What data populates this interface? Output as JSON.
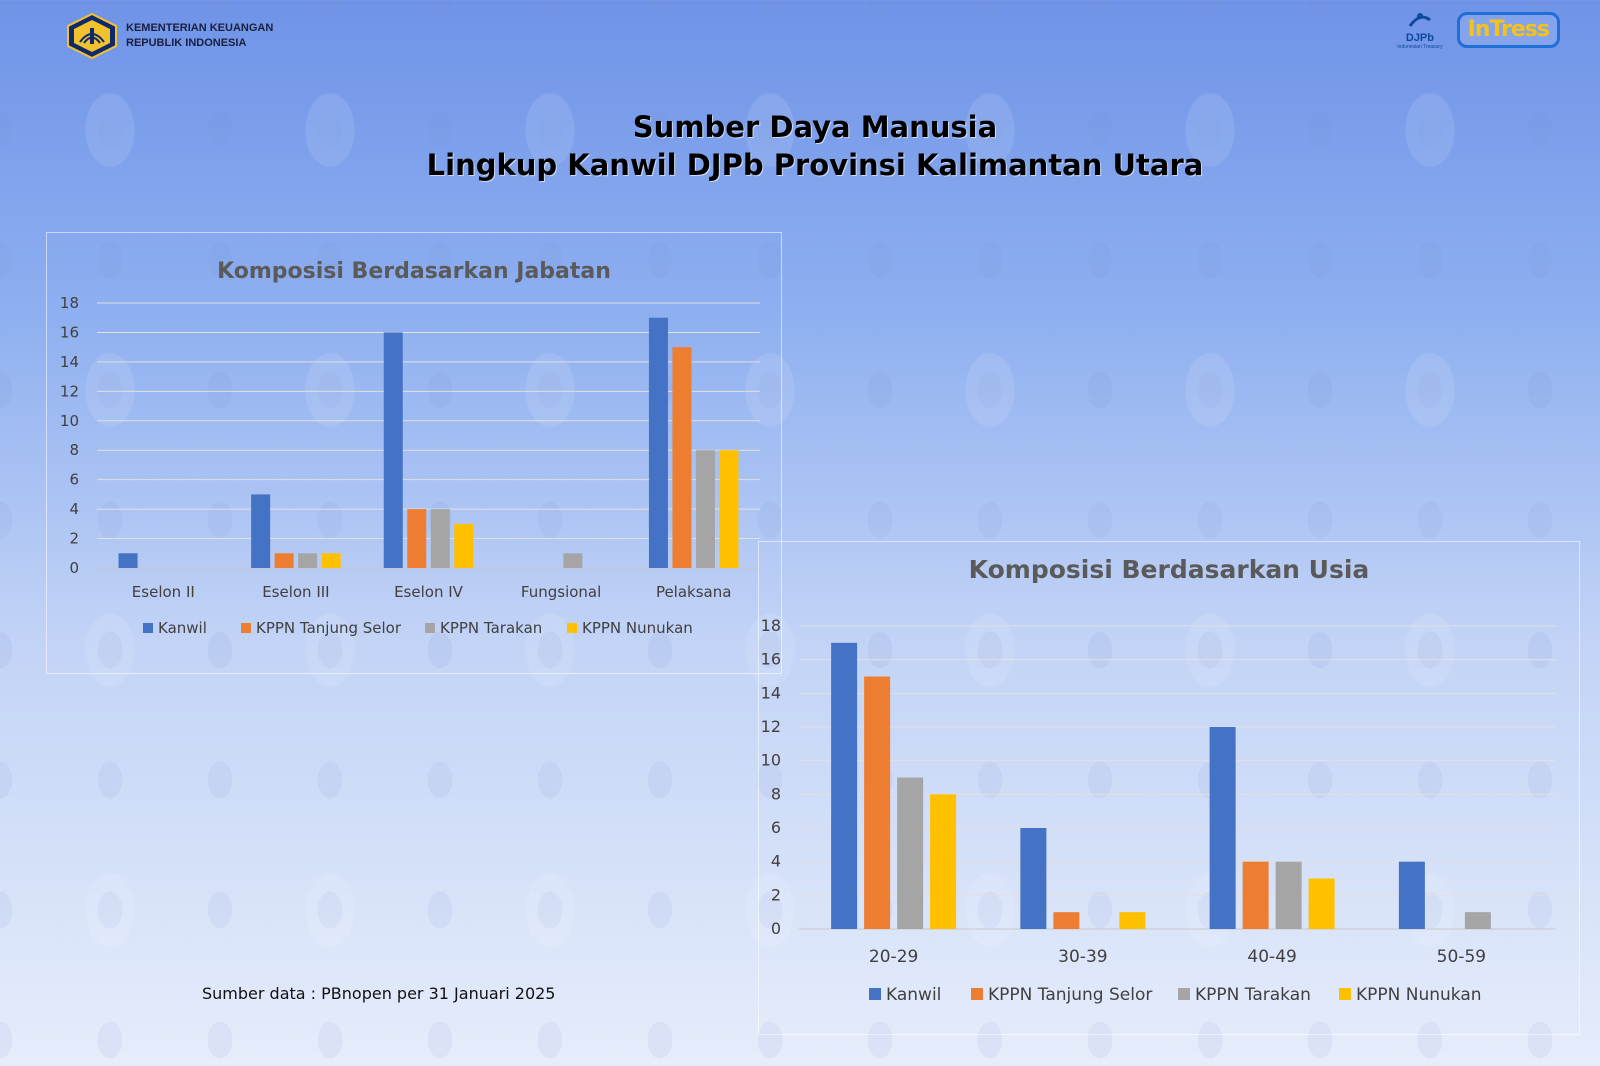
{
  "header": {
    "ministry_line1": "KEMENTERIAN KEUANGAN",
    "ministry_line2": "REPUBLIK INDONESIA",
    "logo_djpb": "DJPb",
    "logo_djpb_sub": "Indonesian Treasury",
    "logo_intress": "InTress"
  },
  "title": {
    "line1": "Sumber Daya Manusia",
    "line2": "Lingkup Kanwil DJPb Provinsi Kalimantan Utara"
  },
  "source_note": "Sumber data : PBnopen per 31 Januari 2025",
  "colors": {
    "Kanwil": "#4472c4",
    "KPPN Tanjung Selor": "#ed7d31",
    "KPPN Tarakan": "#a5a5a5",
    "KPPN Nunukan": "#ffc000"
  },
  "chart_data": [
    {
      "type": "bar",
      "title": "Komposisi Berdasarkan Jabatan",
      "categories": [
        "Eselon II",
        "Eselon III",
        "Eselon IV",
        "Fungsional",
        "Pelaksana"
      ],
      "series": [
        {
          "name": "Kanwil",
          "values": [
            1,
            5,
            16,
            0,
            17
          ]
        },
        {
          "name": "KPPN Tanjung Selor",
          "values": [
            0,
            1,
            4,
            0,
            15
          ]
        },
        {
          "name": "KPPN Tarakan",
          "values": [
            0,
            1,
            4,
            1,
            8
          ]
        },
        {
          "name": "KPPN Nunukan",
          "values": [
            0,
            1,
            3,
            0,
            8
          ]
        }
      ],
      "ylim": [
        0,
        18
      ],
      "yticks": [
        0,
        2,
        4,
        6,
        8,
        10,
        12,
        14,
        16,
        18
      ],
      "grid": true,
      "legend": "bottom"
    },
    {
      "type": "bar",
      "title": "Komposisi Berdasarkan Usia",
      "categories": [
        "20-29",
        "30-39",
        "40-49",
        "50-59"
      ],
      "series": [
        {
          "name": "Kanwil",
          "values": [
            17,
            6,
            12,
            4
          ]
        },
        {
          "name": "KPPN Tanjung Selor",
          "values": [
            15,
            1,
            4,
            0
          ]
        },
        {
          "name": "KPPN Tarakan",
          "values": [
            9,
            0,
            4,
            1
          ]
        },
        {
          "name": "KPPN Nunukan",
          "values": [
            8,
            1,
            3,
            0
          ]
        }
      ],
      "ylim": [
        0,
        18
      ],
      "yticks": [
        0,
        2,
        4,
        6,
        8,
        10,
        12,
        14,
        16,
        18
      ],
      "grid": true,
      "legend": "bottom"
    }
  ]
}
